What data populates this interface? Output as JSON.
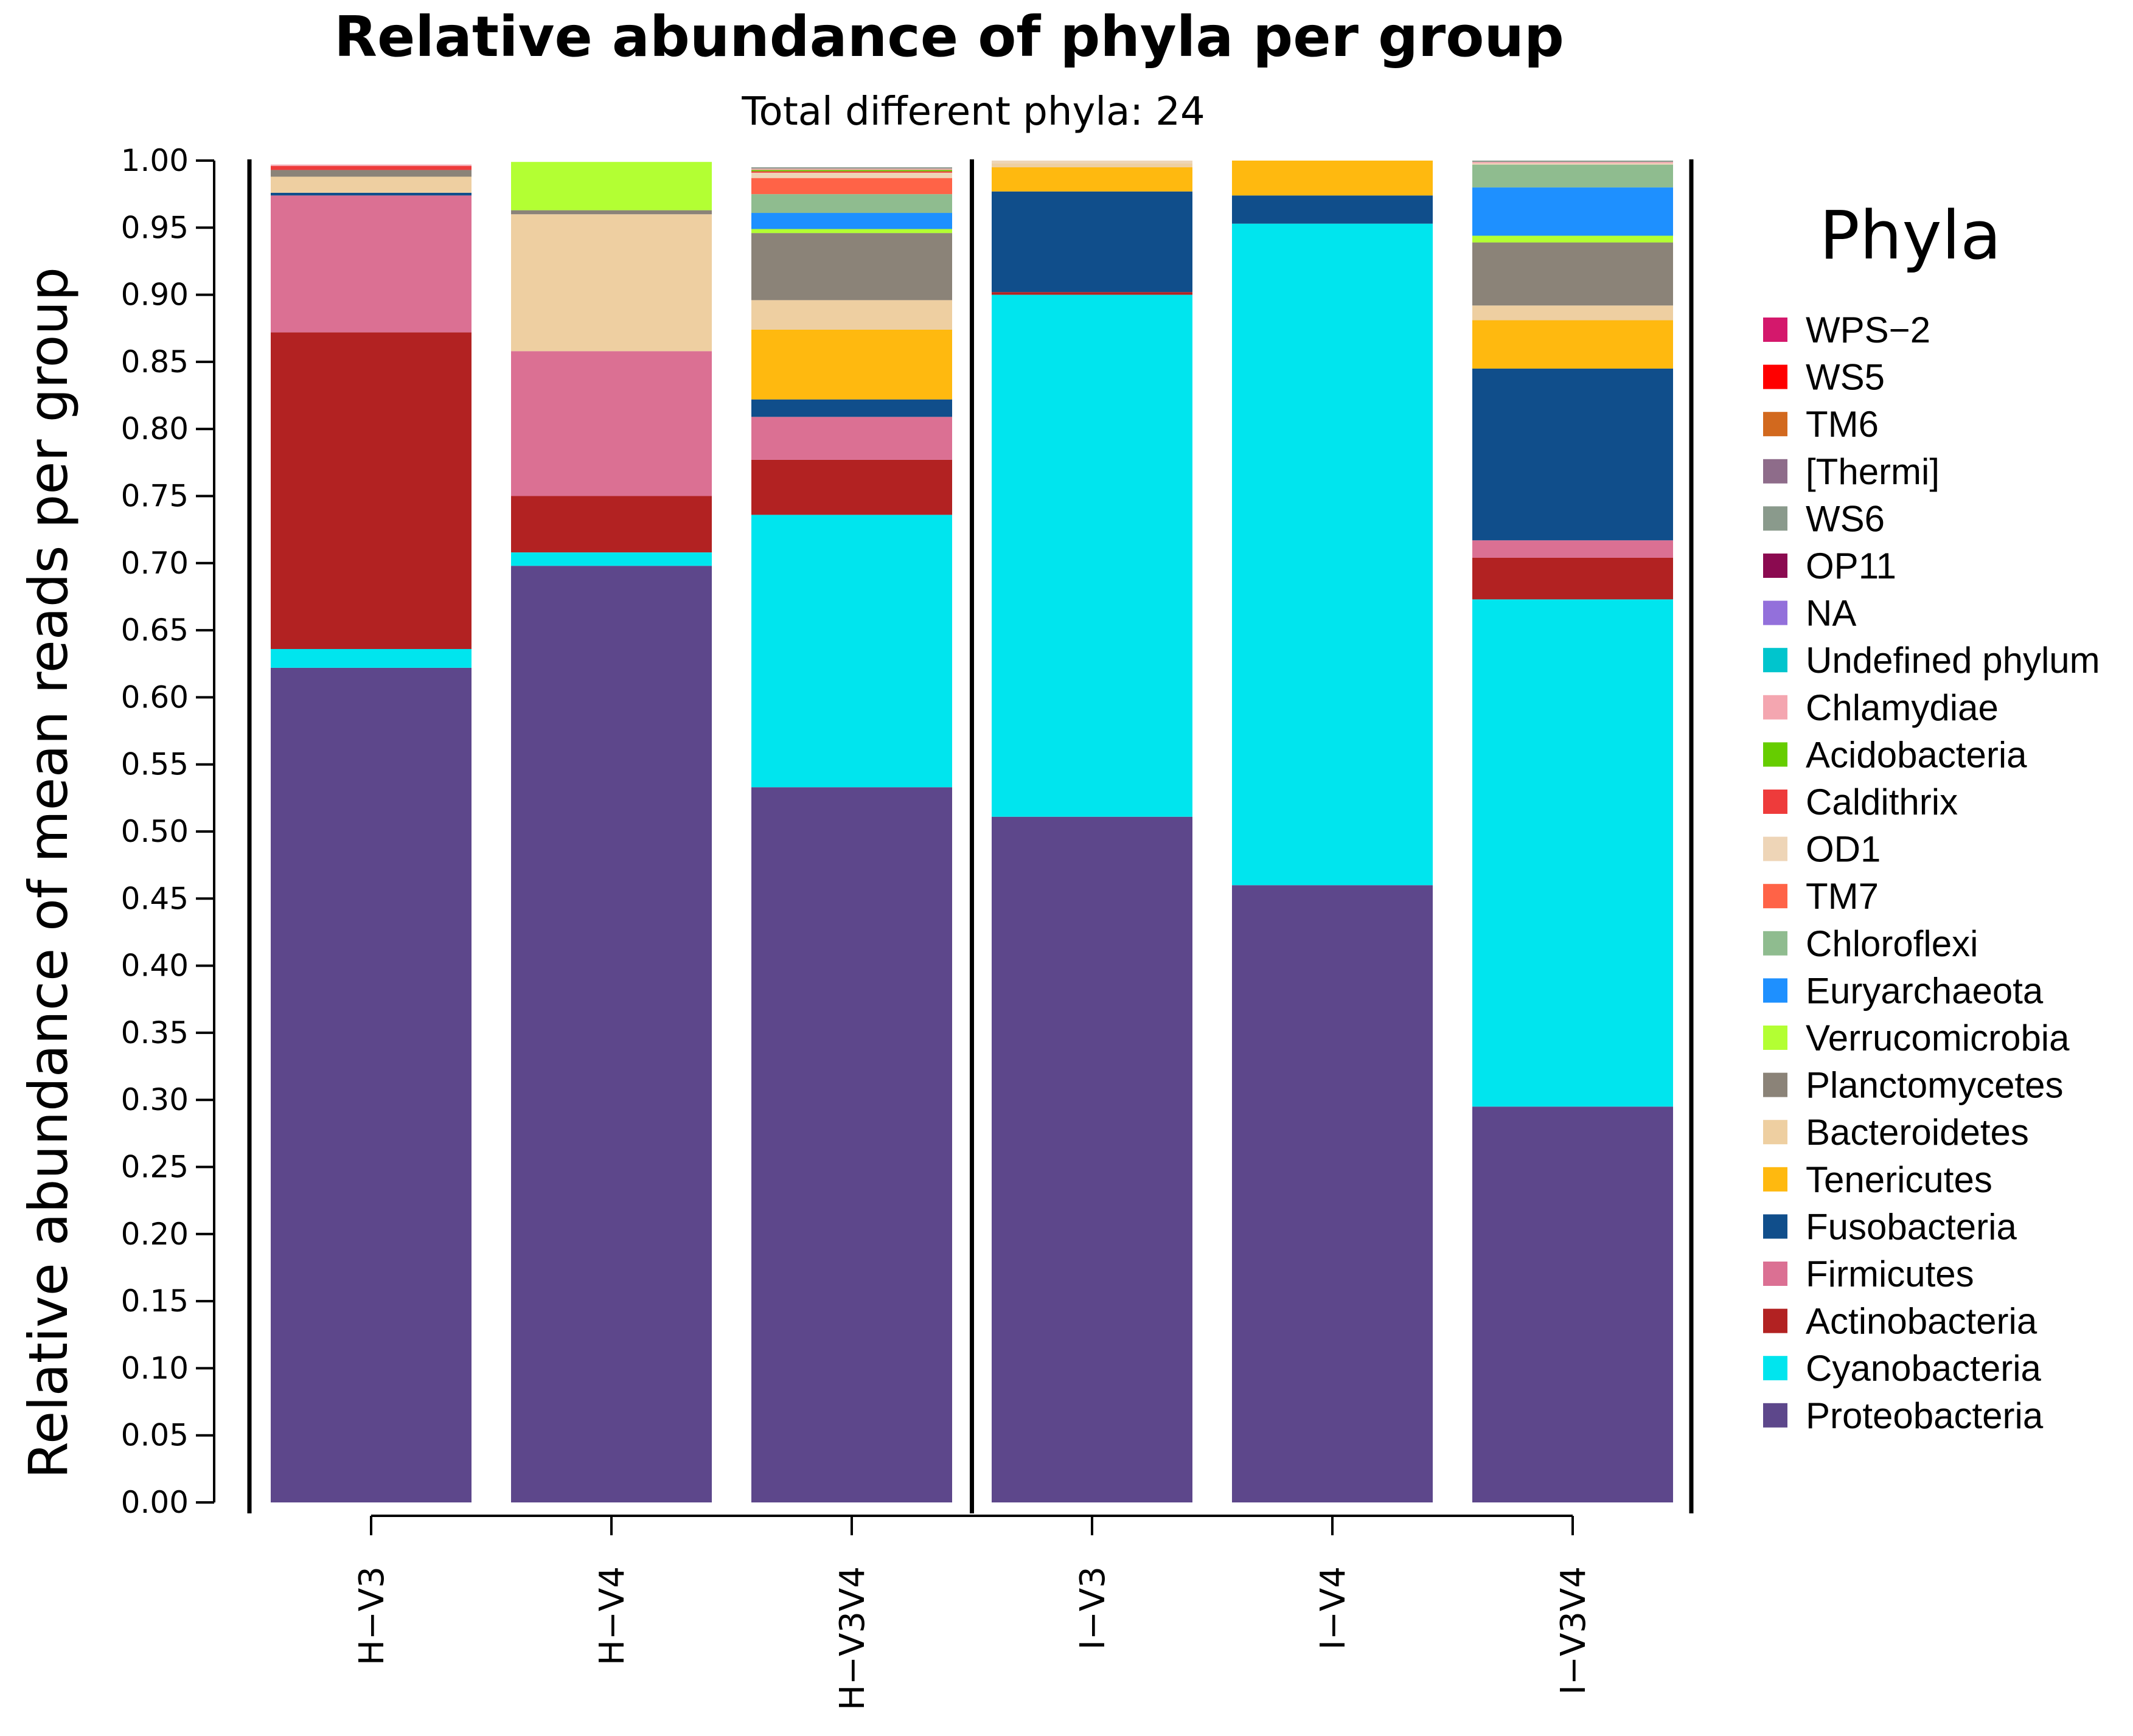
{
  "chart_data": {
    "type": "bar",
    "stacked": true,
    "title": "Relative abundance of phyla per group",
    "subtitle": "Total different phyla: 24",
    "xlabel": "",
    "ylabel": "Relative abundance of mean reads per group",
    "ylim": [
      0,
      1
    ],
    "yticks": [
      "0.00",
      "0.05",
      "0.10",
      "0.15",
      "0.20",
      "0.25",
      "0.30",
      "0.35",
      "0.40",
      "0.45",
      "0.50",
      "0.55",
      "0.60",
      "0.65",
      "0.70",
      "0.75",
      "0.80",
      "0.85",
      "0.90",
      "0.95",
      "1.00"
    ],
    "categories": [
      "H−V3",
      "H−V4",
      "H−V3V4",
      "I−V3",
      "I−V4",
      "I−V3V4"
    ],
    "group_separator_after": 2,
    "legend_title": "Phyla",
    "legend_position": "right",
    "legend": [
      {
        "name": "WPS−2",
        "color": "#D4186C"
      },
      {
        "name": "WS5",
        "color": "#FF0000"
      },
      {
        "name": "TM6",
        "color": "#D2691E"
      },
      {
        "name": "[Thermi]",
        "color": "#8E6C8A"
      },
      {
        "name": "WS6",
        "color": "#8A9A8C"
      },
      {
        "name": "OP11",
        "color": "#8B0A50"
      },
      {
        "name": "NA",
        "color": "#9370DB"
      },
      {
        "name": "Undefined phylum",
        "color": "#00C5CD"
      },
      {
        "name": "Chlamydiae",
        "color": "#F4A6B0"
      },
      {
        "name": "Acidobacteria",
        "color": "#66CD00"
      },
      {
        "name": "Caldithrix",
        "color": "#EE3B3B"
      },
      {
        "name": "OD1",
        "color": "#EED5B7"
      },
      {
        "name": "TM7",
        "color": "#FF6347"
      },
      {
        "name": "Chloroflexi",
        "color": "#8FBC8F"
      },
      {
        "name": "Euryarchaeota",
        "color": "#1E90FF"
      },
      {
        "name": "Verrucomicrobia",
        "color": "#B3FF33"
      },
      {
        "name": "Planctomycetes",
        "color": "#8B8378"
      },
      {
        "name": "Bacteroidetes",
        "color": "#EECFA1"
      },
      {
        "name": "Tenericutes",
        "color": "#FFB90F"
      },
      {
        "name": "Fusobacteria",
        "color": "#104E8B"
      },
      {
        "name": "Firmicutes",
        "color": "#DB7093"
      },
      {
        "name": "Actinobacteria",
        "color": "#B22222"
      },
      {
        "name": "Cyanobacteria",
        "color": "#00E5EE"
      },
      {
        "name": "Proteobacteria",
        "color": "#5D478B"
      }
    ],
    "series": [
      {
        "name": "Proteobacteria",
        "values": [
          0.622,
          0.698,
          0.533,
          0.511,
          0.46,
          0.295
        ]
      },
      {
        "name": "Cyanobacteria",
        "values": [
          0.014,
          0.01,
          0.203,
          0.389,
          0.493,
          0.378
        ]
      },
      {
        "name": "Actinobacteria",
        "values": [
          0.236,
          0.042,
          0.041,
          0.002,
          0.0,
          0.031
        ]
      },
      {
        "name": "Firmicutes",
        "values": [
          0.102,
          0.108,
          0.032,
          0.0,
          0.0,
          0.013
        ]
      },
      {
        "name": "Fusobacteria",
        "values": [
          0.002,
          0.0,
          0.013,
          0.075,
          0.021,
          0.128
        ]
      },
      {
        "name": "Tenericutes",
        "values": [
          0.0,
          0.0,
          0.052,
          0.018,
          0.026,
          0.036
        ]
      },
      {
        "name": "Bacteroidetes",
        "values": [
          0.012,
          0.102,
          0.022,
          0.003,
          0.0,
          0.011
        ]
      },
      {
        "name": "Planctomycetes",
        "values": [
          0.005,
          0.003,
          0.05,
          0.0,
          0.0,
          0.047
        ]
      },
      {
        "name": "Verrucomicrobia",
        "values": [
          0.0,
          0.036,
          0.003,
          0.0,
          0.0,
          0.005
        ]
      },
      {
        "name": "Euryarchaeota",
        "values": [
          0.0,
          0.0,
          0.012,
          0.0,
          0.0,
          0.036
        ]
      },
      {
        "name": "Chloroflexi",
        "values": [
          0.0,
          0.0,
          0.014,
          0.0,
          0.0,
          0.017
        ]
      },
      {
        "name": "TM7",
        "values": [
          0.0,
          0.0,
          0.012,
          0.0,
          0.0,
          0.0
        ]
      },
      {
        "name": "OD1",
        "values": [
          0.0,
          0.0,
          0.004,
          0.002,
          0.0,
          0.001
        ]
      },
      {
        "name": "Caldithrix",
        "values": [
          0.003,
          0.0,
          0.001,
          0.0,
          0.0,
          0.0
        ]
      },
      {
        "name": "Acidobacteria",
        "values": [
          0.0,
          0.0,
          0.001,
          0.0,
          0.0,
          0.0
        ]
      },
      {
        "name": "Chlamydiae",
        "values": [
          0.001,
          0.0,
          0.001,
          0.0,
          0.0,
          0.001
        ]
      },
      {
        "name": "Undefined phylum",
        "values": [
          0.0,
          0.0,
          0.0,
          0.0,
          0.0,
          0.0
        ]
      },
      {
        "name": "NA",
        "values": [
          0.0,
          0.0,
          0.0,
          0.0,
          0.0,
          0.0
        ]
      },
      {
        "name": "OP11",
        "values": [
          0.0,
          0.0,
          0.0,
          0.0,
          0.0,
          0.0
        ]
      },
      {
        "name": "WS6",
        "values": [
          0.0,
          0.0,
          0.001,
          0.0,
          0.0,
          0.001
        ]
      },
      {
        "name": "[Thermi]",
        "values": [
          0.0,
          0.0,
          0.0,
          0.0,
          0.0,
          0.0
        ]
      },
      {
        "name": "TM6",
        "values": [
          0.0,
          0.0,
          0.0,
          0.0,
          0.0,
          0.0
        ]
      },
      {
        "name": "WS5",
        "values": [
          0.0,
          0.0,
          0.0,
          0.0,
          0.0,
          0.0
        ]
      },
      {
        "name": "WPS−2",
        "values": [
          0.0,
          0.0,
          0.0,
          0.0,
          0.0,
          0.0
        ]
      }
    ]
  }
}
